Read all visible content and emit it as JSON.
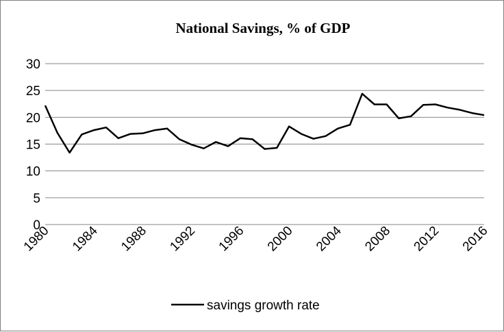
{
  "chart_data": {
    "type": "line",
    "title": "National Savings, % of GDP",
    "xlabel": "",
    "ylabel": "",
    "ylim": [
      0,
      30
    ],
    "y_ticks": [
      0,
      5,
      10,
      15,
      20,
      25,
      30
    ],
    "x_tick_labels": [
      "1980",
      "1984",
      "1988",
      "1992",
      "1996",
      "2000",
      "2004",
      "2008",
      "2012",
      "2016"
    ],
    "grid": "horizontal",
    "legend_position": "bottom",
    "x": [
      1980,
      1981,
      1982,
      1983,
      1984,
      1985,
      1986,
      1987,
      1988,
      1989,
      1990,
      1991,
      1992,
      1993,
      1994,
      1995,
      1996,
      1997,
      1998,
      1999,
      2000,
      2001,
      2002,
      2003,
      2004,
      2005,
      2006,
      2007,
      2008,
      2009,
      2010,
      2011,
      2012,
      2013,
      2014,
      2015,
      2016
    ],
    "series": [
      {
        "name": "savings growth rate",
        "color": "#000000",
        "values": [
          22.2,
          17.1,
          13.4,
          16.8,
          17.6,
          18.1,
          16.1,
          16.9,
          17.0,
          17.6,
          17.9,
          15.9,
          14.9,
          14.2,
          15.4,
          14.6,
          16.1,
          15.9,
          14.1,
          14.3,
          18.3,
          16.9,
          16.0,
          16.5,
          17.9,
          18.6,
          24.4,
          22.4,
          22.4,
          19.8,
          20.2,
          22.3,
          22.4,
          21.8,
          21.4,
          20.8,
          20.4
        ]
      }
    ]
  }
}
